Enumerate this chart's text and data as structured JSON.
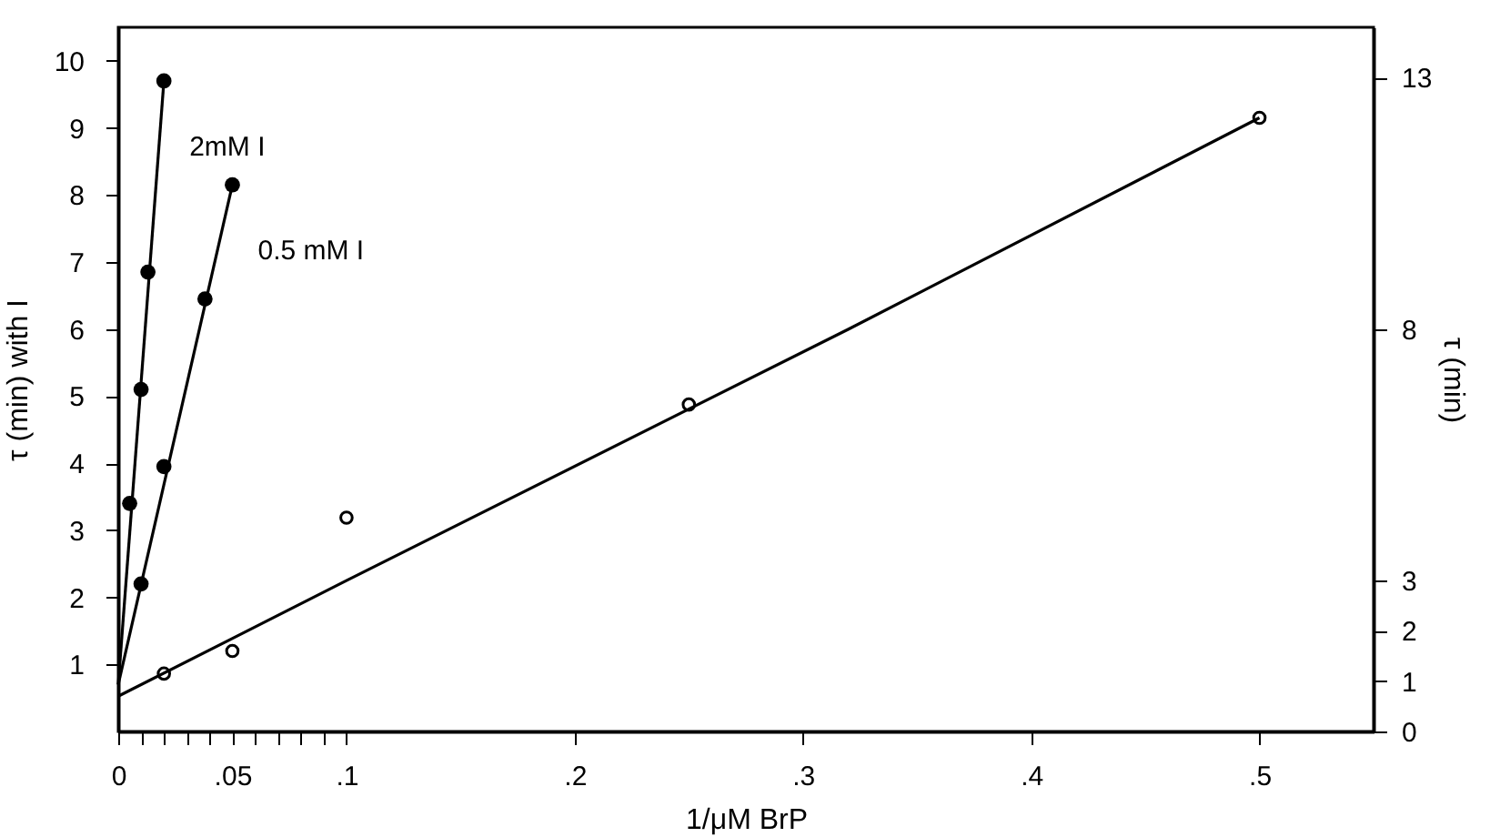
{
  "chart_data": {
    "type": "scatter",
    "xlabel": "1/μM BrP",
    "ylabel": "τ (min) with I",
    "y2label": "τ (min)",
    "xlim": [
      0,
      0.55
    ],
    "xticks": [
      0,
      {
        "value": 0.01,
        "label": null
      },
      {
        "value": 0.02,
        "label": null
      },
      {
        "value": 0.03,
        "label": null
      },
      {
        "value": 0.04,
        "label": null
      },
      {
        "value": 0.05,
        "label": ".05"
      },
      {
        "value": 0.06,
        "label": null
      },
      {
        "value": 0.07,
        "label": null
      },
      {
        "value": 0.08,
        "label": null
      },
      {
        "value": 0.09,
        "label": null
      },
      {
        "value": 0.1,
        "label": ".1"
      },
      {
        "value": 0.2,
        "label": ".2"
      },
      {
        "value": 0.3,
        "label": ".3"
      },
      {
        "value": 0.4,
        "label": ".4"
      },
      {
        "value": 0.5,
        "label": ".5"
      }
    ],
    "ylim": [
      0,
      10.5
    ],
    "yticks": [
      1,
      2,
      3,
      4,
      5,
      6,
      7,
      8,
      9,
      10
    ],
    "y2lim": [
      0,
      14
    ],
    "y2ticks": [
      0,
      1,
      2,
      3,
      8,
      13
    ],
    "grid": false,
    "legend": false,
    "marker": "circle",
    "series": [
      {
        "name": "2mM I",
        "color": "#000000",
        "x": [
          0.005,
          0.01,
          0.013,
          0.02
        ],
        "values": [
          3.4,
          5.1,
          6.85,
          9.7
        ]
      },
      {
        "name": "0.5 mM I",
        "color": "#000000",
        "x": [
          0.01,
          0.02,
          0.038,
          0.05
        ],
        "values": [
          2.2,
          3.95,
          6.45,
          8.15
        ]
      },
      {
        "color": "#000000",
        "axis": "y2",
        "x": [
          0.02,
          0.05,
          0.1,
          0.25,
          0.5
        ],
        "values": [
          1.15,
          1.6,
          4.25,
          6.5,
          12.2
        ]
      },
      {
        "type": "line",
        "marker": "none",
        "color": "#000000",
        "x": [
          0,
          0.02
        ],
        "values": [
          0.7,
          9.7
        ]
      },
      {
        "type": "line",
        "marker": "none",
        "color": "#000000",
        "x": [
          0,
          0.05
        ],
        "values": [
          0.7,
          8.15
        ]
      },
      {
        "type": "line",
        "marker": "none",
        "color": "#000000",
        "axis": "y2",
        "x": [
          0,
          0.1,
          0.32,
          0.5
        ],
        "values": [
          0.7,
          3.0,
          8,
          12.2
        ]
      }
    ]
  }
}
